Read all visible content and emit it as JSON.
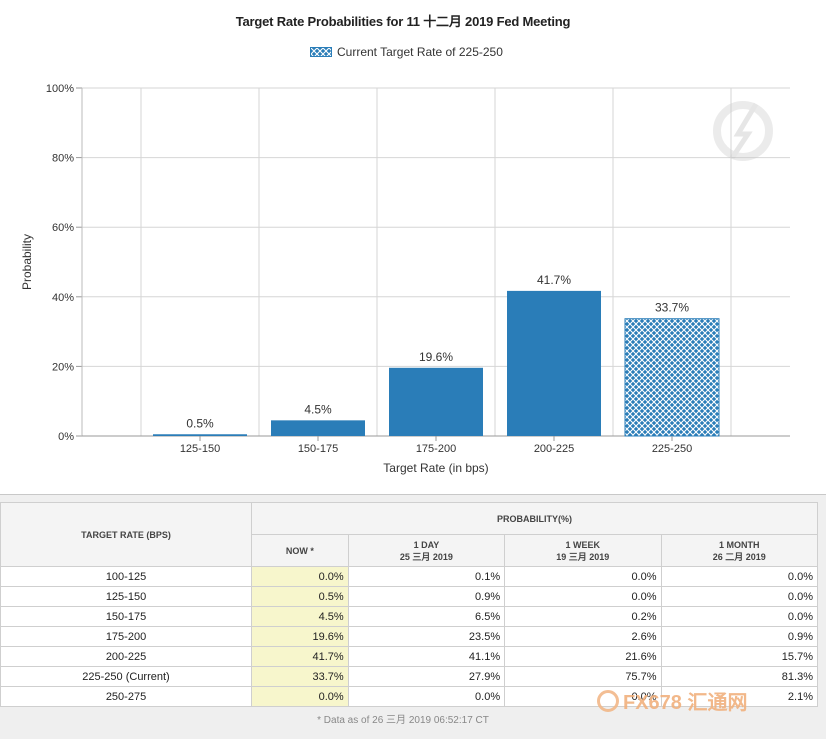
{
  "chart_data": {
    "type": "bar",
    "title": "Target Rate Probabilities for 11 十二月 2019  Fed Meeting",
    "xlabel": "Target Rate (in bps)",
    "ylabel": "Probability",
    "categories": [
      "125-150",
      "150-175",
      "175-200",
      "200-225",
      "225-250"
    ],
    "values": [
      0.5,
      4.5,
      19.6,
      41.7,
      33.7
    ],
    "data_labels": [
      "0.5%",
      "4.5%",
      "19.6%",
      "41.7%",
      "33.7%"
    ],
    "ylim": [
      0,
      100
    ],
    "yticks": [
      0,
      20,
      40,
      60,
      80,
      100
    ],
    "ytick_labels": [
      "0%",
      "20%",
      "40%",
      "60%",
      "80%",
      "100%"
    ],
    "grid": true,
    "legend": {
      "label": "Current Target Rate of 225-250",
      "placement": "top-center"
    },
    "highlight_category": "225-250",
    "colors": {
      "bar": "#2a7db8",
      "grid": "#d6d6d6"
    }
  },
  "table": {
    "header_target": "TARGET RATE (BPS)",
    "header_probability": "PROBABILITY(%)",
    "col_now": "NOW *",
    "col_1day_label": "1 DAY",
    "col_1day_date": "25 三月 2019",
    "col_1week_label": "1 WEEK",
    "col_1week_date": "19 三月 2019",
    "col_1month_label": "1 MONTH",
    "col_1month_date": "26 二月 2019",
    "rows": [
      {
        "rate": "100-125",
        "now": "0.0%",
        "day": "0.1%",
        "week": "0.0%",
        "month": "0.0%"
      },
      {
        "rate": "125-150",
        "now": "0.5%",
        "day": "0.9%",
        "week": "0.0%",
        "month": "0.0%"
      },
      {
        "rate": "150-175",
        "now": "4.5%",
        "day": "6.5%",
        "week": "0.2%",
        "month": "0.0%"
      },
      {
        "rate": "175-200",
        "now": "19.6%",
        "day": "23.5%",
        "week": "2.6%",
        "month": "0.9%"
      },
      {
        "rate": "200-225",
        "now": "41.7%",
        "day": "41.1%",
        "week": "21.6%",
        "month": "15.7%"
      },
      {
        "rate": "225-250 (Current)",
        "now": "33.7%",
        "day": "27.9%",
        "week": "75.7%",
        "month": "81.3%"
      },
      {
        "rate": "250-275",
        "now": "0.0%",
        "day": "0.0%",
        "week": "0.0%",
        "month": "2.1%"
      }
    ],
    "footnote": "* Data as of 26 三月 2019 06:52:17 CT"
  },
  "watermark": {
    "text": "FX678 汇通网"
  }
}
